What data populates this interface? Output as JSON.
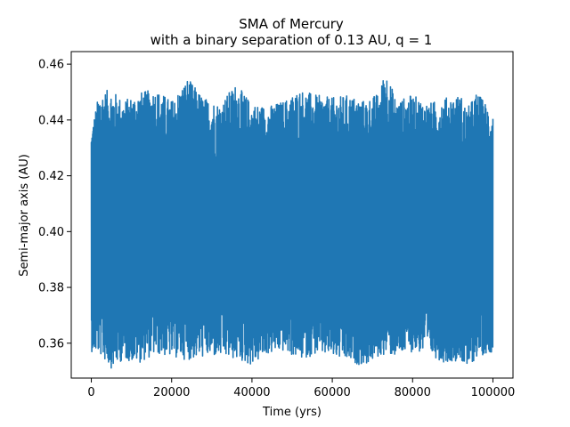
{
  "chart_data": {
    "type": "line",
    "title": "SMA of Mercury",
    "subtitle": "with a binary separation of 0.13 AU, q = 1",
    "xlabel": "Time (yrs)",
    "ylabel": "Semi-major axis (AU)",
    "xlim": [
      -5000,
      105000
    ],
    "ylim": [
      0.3475,
      0.4645
    ],
    "x_ticks": [
      0,
      20000,
      40000,
      60000,
      80000,
      100000
    ],
    "x_tick_labels": [
      "0",
      "20000",
      "40000",
      "60000",
      "80000",
      "100000"
    ],
    "y_ticks": [
      0.36,
      0.38,
      0.4,
      0.42,
      0.44,
      0.46
    ],
    "y_tick_labels": [
      "0.36",
      "0.38",
      "0.40",
      "0.42",
      "0.44",
      "0.46"
    ],
    "grid": false,
    "legend": "none",
    "series": [
      {
        "color": "#1f77b4",
        "description_values": {
          "x_start": 0,
          "x_end": 100000,
          "mean": 0.4,
          "typical_min": 0.357,
          "typical_max": 0.444,
          "peak_max_x": 73000,
          "peak_max": 0.459,
          "notable_minimum_x": 93500,
          "notable_minimum": 0.35
        },
        "envelope": {
          "x": [
            0,
            2000,
            5000,
            8000,
            12000,
            16000,
            20000,
            24000,
            28000,
            32000,
            36000,
            40000,
            44000,
            48000,
            52000,
            56000,
            60000,
            64000,
            68000,
            72000,
            73000,
            76000,
            80000,
            84000,
            88000,
            92000,
            93500,
            96000,
            100000
          ],
          "upper": [
            0.437,
            0.45,
            0.451,
            0.447,
            0.45,
            0.451,
            0.447,
            0.455,
            0.448,
            0.446,
            0.453,
            0.446,
            0.445,
            0.447,
            0.451,
            0.449,
            0.448,
            0.449,
            0.447,
            0.45,
            0.459,
            0.447,
            0.449,
            0.446,
            0.448,
            0.449,
            0.444,
            0.45,
            0.443
          ],
          "lower": [
            0.357,
            0.356,
            0.351,
            0.354,
            0.353,
            0.356,
            0.355,
            0.354,
            0.355,
            0.355,
            0.354,
            0.352,
            0.356,
            0.357,
            0.354,
            0.356,
            0.355,
            0.353,
            0.352,
            0.355,
            0.356,
            0.355,
            0.357,
            0.356,
            0.353,
            0.354,
            0.35,
            0.355,
            0.357
          ]
        }
      }
    ]
  }
}
